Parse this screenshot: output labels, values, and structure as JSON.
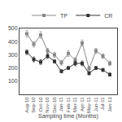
{
  "chart_data": {
    "type": "line",
    "xlabel": "Sampling time (Months)",
    "categories": [
      "Aug-10",
      "Sep-10",
      "Oct-10",
      "Nov-10",
      "Dec-10",
      "Jan-11",
      "Feb-11",
      "Mar-11",
      "Apr-11",
      "May-11",
      "Jun-11",
      "Jul-11",
      "Jan-13"
    ],
    "series": [
      {
        "name": "TP",
        "color": "#888888",
        "marker": "square",
        "values": [
          460,
          380,
          450,
          330,
          300,
          240,
          310,
          260,
          390,
          195,
          330,
          290,
          235
        ],
        "errors": [
          25,
          20,
          25,
          18,
          18,
          18,
          22,
          18,
          22,
          18,
          18,
          18,
          18
        ]
      },
      {
        "name": "CR",
        "color": "#333333",
        "marker": "square",
        "values": [
          320,
          265,
          245,
          290,
          250,
          175,
          200,
          235,
          235,
          160,
          200,
          185,
          150
        ],
        "errors": [
          18,
          18,
          18,
          18,
          12,
          12,
          12,
          18,
          18,
          12,
          12,
          12,
          12
        ]
      }
    ],
    "ylim": [
      0,
      500
    ],
    "yticks": [
      100,
      200,
      300,
      400,
      500
    ],
    "grid": false,
    "legend": "upper right"
  }
}
